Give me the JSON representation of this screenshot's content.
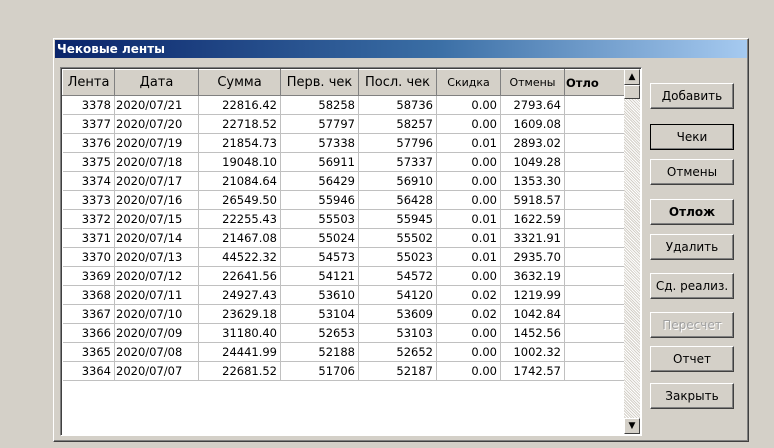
{
  "window": {
    "title": "Чековые ленты"
  },
  "columns": [
    "Лента",
    "Дата",
    "Сумма",
    "Перв. чек",
    "Посл. чек",
    "Скидка",
    "Отмены",
    "Отло"
  ],
  "rows": [
    [
      "3378",
      "2020/07/21",
      "22816.42",
      "58258",
      "58736",
      "0.00",
      "2793.64",
      ""
    ],
    [
      "3377",
      "2020/07/20",
      "22718.52",
      "57797",
      "58257",
      "0.00",
      "1609.08",
      ""
    ],
    [
      "3376",
      "2020/07/19",
      "21854.73",
      "57338",
      "57796",
      "0.01",
      "2893.02",
      ""
    ],
    [
      "3375",
      "2020/07/18",
      "19048.10",
      "56911",
      "57337",
      "0.00",
      "1049.28",
      ""
    ],
    [
      "3374",
      "2020/07/17",
      "21084.64",
      "56429",
      "56910",
      "0.00",
      "1353.30",
      ""
    ],
    [
      "3373",
      "2020/07/16",
      "26549.50",
      "55946",
      "56428",
      "0.00",
      "5918.57",
      ""
    ],
    [
      "3372",
      "2020/07/15",
      "22255.43",
      "55503",
      "55945",
      "0.01",
      "1622.59",
      ""
    ],
    [
      "3371",
      "2020/07/14",
      "21467.08",
      "55024",
      "55502",
      "0.01",
      "3321.91",
      ""
    ],
    [
      "3370",
      "2020/07/13",
      "44522.32",
      "54573",
      "55023",
      "0.01",
      "2935.70",
      ""
    ],
    [
      "3369",
      "2020/07/12",
      "22641.56",
      "54121",
      "54572",
      "0.00",
      "3632.19",
      ""
    ],
    [
      "3368",
      "2020/07/11",
      "24927.43",
      "53610",
      "54120",
      "0.02",
      "1219.99",
      ""
    ],
    [
      "3367",
      "2020/07/10",
      "23629.18",
      "53104",
      "53609",
      "0.02",
      "1042.84",
      ""
    ],
    [
      "3366",
      "2020/07/09",
      "31180.40",
      "52653",
      "53103",
      "0.00",
      "1452.56",
      ""
    ],
    [
      "3365",
      "2020/07/08",
      "24441.99",
      "52188",
      "52652",
      "0.00",
      "1002.32",
      ""
    ],
    [
      "3364",
      "2020/07/07",
      "22681.52",
      "51706",
      "52187",
      "0.00",
      "1742.57",
      ""
    ]
  ],
  "buttons": {
    "add": "Добавить",
    "checks": "Чеки",
    "cancellations": "Отмены",
    "postponed": "Отлож",
    "delete": "Удалить",
    "summary": "Сд. реализ.",
    "recalc": "Пересчет",
    "report": "Отчет",
    "close": "Закрыть"
  },
  "icons": {
    "scroll_up": "arrow-up-icon",
    "scroll_down": "arrow-down-icon"
  },
  "colors": {
    "title_start": "#0a246a",
    "title_end": "#a6caf0",
    "face": "#d4d0c8"
  }
}
